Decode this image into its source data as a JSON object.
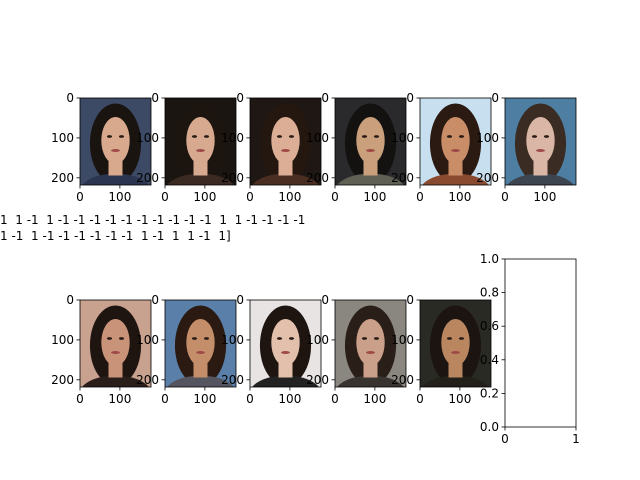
{
  "figure": {
    "caption_lines": [
      "1  1 -1  1 -1 -1 -1 -1 -1 -1 -1 -1 -1 -1  1  1 -1 -1 -1 -1",
      "1 -1  1 -1 -1 -1 -1 -1 -1  1 -1  1  1 -1  1]"
    ]
  },
  "chart_data": [
    {
      "type": "image",
      "panel": "face-1",
      "x_ticks": [
        0,
        100
      ],
      "y_ticks": [
        0,
        100,
        200
      ],
      "xlim": [
        0,
        178
      ],
      "ylim": [
        218,
        0
      ]
    },
    {
      "type": "image",
      "panel": "face-2",
      "x_ticks": [
        0,
        100
      ],
      "y_ticks": [
        0,
        100,
        200
      ],
      "xlim": [
        0,
        178
      ],
      "ylim": [
        218,
        0
      ]
    },
    {
      "type": "image",
      "panel": "face-3",
      "x_ticks": [
        0,
        100
      ],
      "y_ticks": [
        0,
        100,
        200
      ],
      "xlim": [
        0,
        178
      ],
      "ylim": [
        218,
        0
      ]
    },
    {
      "type": "image",
      "panel": "face-4",
      "x_ticks": [
        0,
        100
      ],
      "y_ticks": [
        0,
        100,
        200
      ],
      "xlim": [
        0,
        178
      ],
      "ylim": [
        218,
        0
      ]
    },
    {
      "type": "image",
      "panel": "face-5",
      "x_ticks": [
        0,
        100
      ],
      "y_ticks": [
        0,
        100,
        200
      ],
      "xlim": [
        0,
        178
      ],
      "ylim": [
        218,
        0
      ]
    },
    {
      "type": "image",
      "panel": "face-6",
      "x_ticks": [
        0,
        100
      ],
      "y_ticks": [
        0,
        100,
        200
      ],
      "xlim": [
        0,
        178
      ],
      "ylim": [
        218,
        0
      ]
    },
    {
      "type": "image",
      "panel": "face-7",
      "x_ticks": [
        0,
        100
      ],
      "y_ticks": [
        0,
        100,
        200
      ],
      "xlim": [
        0,
        178
      ],
      "ylim": [
        218,
        0
      ]
    },
    {
      "type": "image",
      "panel": "face-8",
      "x_ticks": [
        0,
        100
      ],
      "y_ticks": [
        0,
        100,
        200
      ],
      "xlim": [
        0,
        178
      ],
      "ylim": [
        218,
        0
      ]
    },
    {
      "type": "image",
      "panel": "face-9",
      "x_ticks": [
        0,
        100
      ],
      "y_ticks": [
        0,
        100,
        200
      ],
      "xlim": [
        0,
        178
      ],
      "ylim": [
        218,
        0
      ]
    },
    {
      "type": "image",
      "panel": "face-10",
      "x_ticks": [
        0,
        100
      ],
      "y_ticks": [
        0,
        100,
        200
      ],
      "xlim": [
        0,
        178
      ],
      "ylim": [
        218,
        0
      ]
    },
    {
      "type": "image",
      "panel": "face-11",
      "x_ticks": [
        0,
        100
      ],
      "y_ticks": [
        0,
        100,
        200
      ],
      "xlim": [
        0,
        178
      ],
      "ylim": [
        218,
        0
      ]
    },
    {
      "type": "empty-axes",
      "panel": "blank",
      "x_ticks": [
        "0",
        "1"
      ],
      "y_ticks": [
        "0.0",
        "0.2",
        "0.4",
        "0.6",
        "0.8",
        "1.0"
      ],
      "xlim": [
        0,
        1
      ],
      "ylim": [
        0,
        1
      ]
    }
  ],
  "palette": {
    "faces": [
      {
        "bg": "#3d4a66",
        "skin": "#d8a98d",
        "hair": "#1a1410",
        "shirt": "#2b3550"
      },
      {
        "bg": "#1b1512",
        "skin": "#d7aa90",
        "hair": "#1c140f",
        "shirt": "#3a2a22"
      },
      {
        "bg": "#1e1713",
        "skin": "#dcae95",
        "hair": "#24170f",
        "shirt": "#4a2e22"
      },
      {
        "bg": "#2a2a2c",
        "skin": "#c9a07b",
        "hair": "#141210",
        "shirt": "#606055"
      },
      {
        "bg": "#c8dff0",
        "skin": "#c98d68",
        "hair": "#2a1a12",
        "shirt": "#8a4a30"
      },
      {
        "bg": "#4e7fa2",
        "skin": "#d9b6a6",
        "hair": "#3a2c22",
        "shirt": "#3d4650"
      },
      {
        "bg": "#c8a28e",
        "skin": "#c99379",
        "hair": "#1e1410",
        "shirt": "#2a1e1a"
      },
      {
        "bg": "#5a7fa8",
        "skin": "#c48e6a",
        "hair": "#2a1a12",
        "shirt": "#555560"
      },
      {
        "bg": "#e8e4e4",
        "skin": "#e3c0ac",
        "hair": "#1e1410",
        "shirt": "#222222"
      },
      {
        "bg": "#8a8680",
        "skin": "#caa08a",
        "hair": "#2a1e18",
        "shirt": "#3a3430"
      },
      {
        "bg": "#2a2a24",
        "skin": "#b98660",
        "hair": "#1c1410",
        "shirt": "#222018"
      }
    ]
  }
}
